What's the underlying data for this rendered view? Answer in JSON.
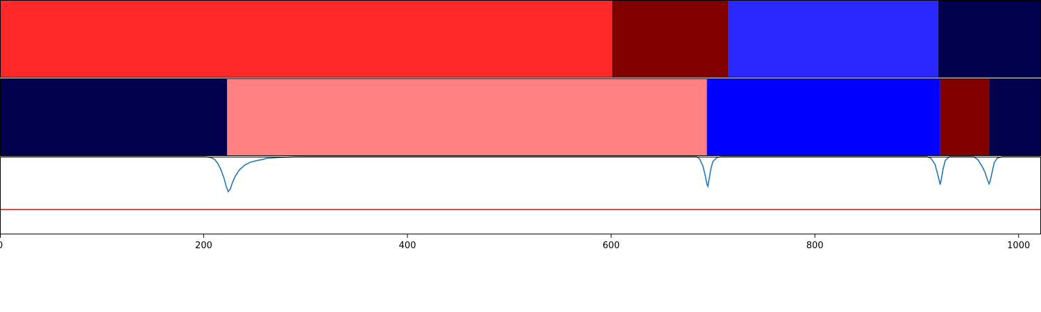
{
  "chart_data": {
    "type": "segmentation-timeline",
    "xlim": [
      0,
      1022
    ],
    "x_ticks": [
      0,
      200,
      400,
      600,
      800,
      1000
    ],
    "tracks": [
      {
        "segments": [
          {
            "start": 0,
            "end": 601,
            "color": "#ff2828"
          },
          {
            "start": 601,
            "end": 715,
            "color": "#800000"
          },
          {
            "start": 715,
            "end": 921,
            "color": "#2828ff"
          },
          {
            "start": 921,
            "end": 1022,
            "color": "#00004c"
          }
        ]
      },
      {
        "segments": [
          {
            "start": 0,
            "end": 223,
            "color": "#00004c"
          },
          {
            "start": 223,
            "end": 694,
            "color": "#ff8080"
          },
          {
            "start": 694,
            "end": 923,
            "color": "#0000ff"
          },
          {
            "start": 923,
            "end": 971,
            "color": "#800000"
          },
          {
            "start": 971,
            "end": 1022,
            "color": "#00004c"
          }
        ]
      }
    ],
    "signal": {
      "color": "#1f77b4",
      "ylim": [
        0,
        1
      ],
      "baseline": 1.0,
      "points": [
        [
          0,
          1.0
        ],
        [
          120,
          1.0
        ],
        [
          200,
          1.0
        ],
        [
          205,
          0.995
        ],
        [
          208,
          0.985
        ],
        [
          211,
          0.96
        ],
        [
          214,
          0.91
        ],
        [
          217,
          0.83
        ],
        [
          220,
          0.72
        ],
        [
          222,
          0.62
        ],
        [
          224,
          0.55
        ],
        [
          226,
          0.58
        ],
        [
          228,
          0.66
        ],
        [
          231,
          0.75
        ],
        [
          235,
          0.83
        ],
        [
          240,
          0.89
        ],
        [
          246,
          0.93
        ],
        [
          252,
          0.95
        ],
        [
          258,
          0.965
        ],
        [
          262,
          0.98
        ],
        [
          275,
          0.99
        ],
        [
          290,
          0.998
        ],
        [
          300,
          1.0
        ],
        [
          684,
          1.0
        ],
        [
          687,
          0.97
        ],
        [
          690,
          0.88
        ],
        [
          692,
          0.78
        ],
        [
          694,
          0.65
        ],
        [
          695,
          0.62
        ],
        [
          696,
          0.7
        ],
        [
          698,
          0.85
        ],
        [
          700,
          0.94
        ],
        [
          704,
          0.99
        ],
        [
          708,
          1.0
        ],
        [
          910,
          1.0
        ],
        [
          914,
          0.98
        ],
        [
          918,
          0.9
        ],
        [
          920,
          0.8
        ],
        [
          922,
          0.7
        ],
        [
          923,
          0.64
        ],
        [
          924,
          0.7
        ],
        [
          926,
          0.85
        ],
        [
          928,
          0.95
        ],
        [
          932,
          1.0
        ],
        [
          956,
          1.0
        ],
        [
          960,
          0.96
        ],
        [
          964,
          0.88
        ],
        [
          967,
          0.8
        ],
        [
          969,
          0.72
        ],
        [
          971,
          0.65
        ],
        [
          972,
          0.68
        ],
        [
          974,
          0.8
        ],
        [
          976,
          0.92
        ],
        [
          979,
          0.98
        ],
        [
          984,
          1.0
        ],
        [
          1022,
          1.0
        ]
      ]
    },
    "threshold": {
      "value": 0.32,
      "color": "#d62728"
    }
  }
}
